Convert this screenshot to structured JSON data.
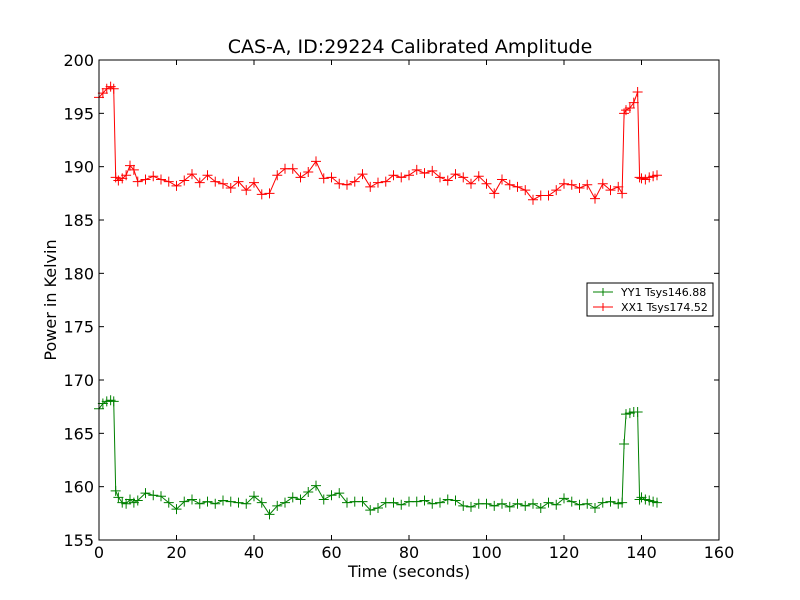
{
  "chart_data": {
    "type": "line",
    "title": "CAS-A, ID:29224 Calibrated Amplitude",
    "xlabel": "Time (seconds)",
    "ylabel": "Power in Kelvin",
    "xlim": [
      0,
      160
    ],
    "ylim": [
      155,
      200
    ],
    "xticks": [
      "0",
      "20",
      "40",
      "60",
      "80",
      "100",
      "120",
      "140",
      "160"
    ],
    "yticks": [
      "155",
      "160",
      "165",
      "170",
      "175",
      "180",
      "185",
      "190",
      "195",
      "200"
    ],
    "grid": false,
    "legend": "center-right",
    "marker": "plus",
    "series": [
      {
        "name": "YY1 Tsys146.88",
        "color": "#008000",
        "x": [
          0,
          1,
          2,
          3,
          3.8,
          4.3,
          5,
          6,
          7,
          8,
          9,
          10,
          12,
          14,
          16,
          18,
          20,
          22,
          24,
          26,
          28,
          30,
          32,
          34,
          36,
          38,
          40,
          42,
          44,
          46,
          48,
          50,
          52,
          54,
          56,
          58,
          60,
          62,
          64,
          66,
          68,
          70,
          72,
          74,
          76,
          78,
          80,
          82,
          84,
          86,
          88,
          90,
          92,
          94,
          96,
          98,
          100,
          102,
          104,
          106,
          108,
          110,
          112,
          114,
          116,
          118,
          120,
          122,
          124,
          126,
          128,
          130,
          132,
          134,
          135,
          135.5,
          136,
          137,
          138,
          139,
          139.5,
          140,
          141,
          142,
          143,
          144
        ],
        "y": [
          167.3,
          167.8,
          168.0,
          168.1,
          168.0,
          159.6,
          159.0,
          158.5,
          158.4,
          158.8,
          158.5,
          158.7,
          159.4,
          159.2,
          159.1,
          158.5,
          157.9,
          158.6,
          158.8,
          158.4,
          158.6,
          158.4,
          158.7,
          158.6,
          158.5,
          158.4,
          159.1,
          158.5,
          157.4,
          158.2,
          158.5,
          159.0,
          158.8,
          159.5,
          160.1,
          158.8,
          159.2,
          159.4,
          158.5,
          158.6,
          158.6,
          157.8,
          158.0,
          158.5,
          158.5,
          158.3,
          158.6,
          158.6,
          158.7,
          158.4,
          158.5,
          158.8,
          158.7,
          158.2,
          158.1,
          158.4,
          158.4,
          158.2,
          158.4,
          158.1,
          158.4,
          158.2,
          158.4,
          158.0,
          158.5,
          158.3,
          158.9,
          158.6,
          158.3,
          158.4,
          158.0,
          158.5,
          158.6,
          158.4,
          158.5,
          164.0,
          166.8,
          166.9,
          167.0,
          167.0,
          158.8,
          159.0,
          158.8,
          158.7,
          158.6,
          158.5
        ]
      },
      {
        "name": "XX1 Tsys174.52",
        "color": "#ff0000",
        "x": [
          0,
          1,
          2,
          3,
          3.8,
          4.3,
          5,
          6,
          7,
          8,
          9,
          10,
          12,
          14,
          16,
          18,
          20,
          22,
          24,
          26,
          28,
          30,
          32,
          34,
          36,
          38,
          40,
          42,
          44,
          46,
          48,
          50,
          52,
          54,
          56,
          58,
          60,
          62,
          64,
          66,
          68,
          70,
          72,
          74,
          76,
          78,
          80,
          82,
          84,
          86,
          88,
          90,
          92,
          94,
          96,
          98,
          100,
          102,
          104,
          106,
          108,
          110,
          112,
          114,
          116,
          118,
          120,
          122,
          124,
          126,
          128,
          130,
          132,
          134,
          135,
          135.5,
          136,
          137,
          138,
          139,
          139.5,
          140,
          141,
          142,
          143,
          144
        ],
        "y": [
          196.5,
          196.9,
          197.3,
          197.5,
          197.3,
          189.0,
          188.7,
          188.9,
          189.2,
          190.1,
          189.7,
          188.6,
          188.8,
          189.1,
          188.8,
          188.6,
          188.2,
          188.7,
          189.3,
          188.5,
          189.2,
          188.6,
          188.4,
          188.0,
          188.6,
          187.8,
          188.5,
          187.4,
          187.5,
          189.2,
          189.8,
          189.8,
          189.0,
          189.5,
          190.5,
          188.9,
          189.0,
          188.4,
          188.3,
          188.6,
          189.3,
          188.1,
          188.5,
          188.6,
          189.2,
          189.0,
          189.2,
          189.7,
          189.4,
          189.6,
          189.0,
          188.7,
          189.3,
          189.0,
          188.4,
          189.1,
          188.4,
          187.5,
          188.8,
          188.3,
          188.1,
          187.8,
          186.9,
          187.3,
          187.3,
          187.8,
          188.4,
          188.3,
          188.0,
          188.3,
          187.0,
          188.4,
          187.8,
          188.1,
          187.5,
          195.0,
          195.3,
          195.5,
          196.0,
          197.0,
          189.0,
          188.9,
          188.8,
          189.0,
          189.1,
          189.2
        ]
      }
    ]
  }
}
